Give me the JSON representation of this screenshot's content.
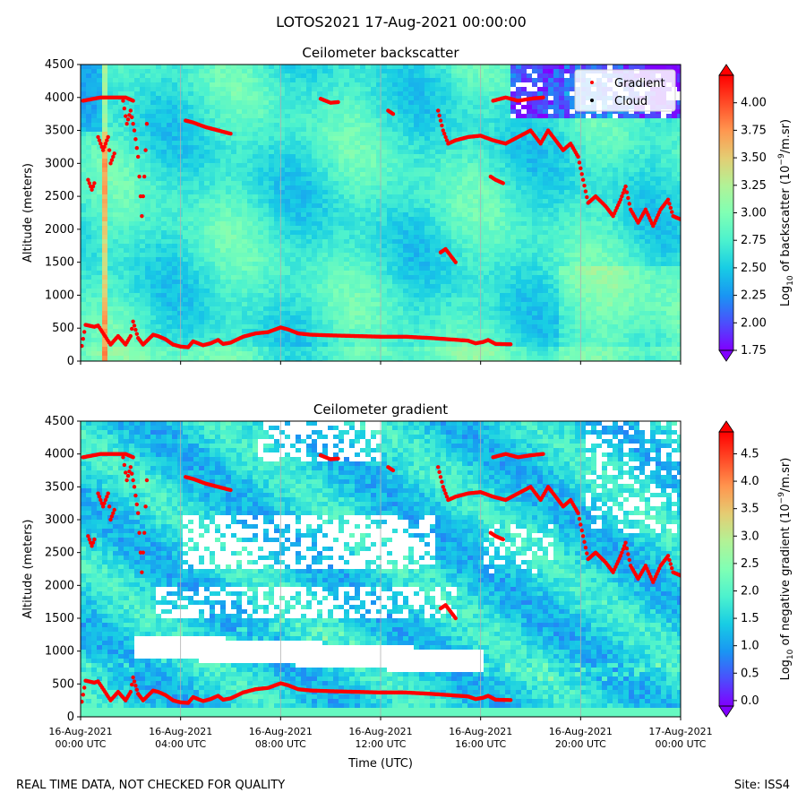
{
  "suptitle": "LOTOS2021 17-Aug-2021 00:00:00",
  "footer_left": "REAL TIME DATA, NOT CHECKED FOR QUALITY",
  "footer_right": "Site: ISS4",
  "colors": {
    "gradient_marker": "#ff0000",
    "cloud_marker": "#000000",
    "gridline": "#b0b0b0",
    "rainbow": [
      "#8000ff",
      "#4b4ffc",
      "#1996f3",
      "#18cde4",
      "#4cf2ce",
      "#80ffb4",
      "#b2f296",
      "#e4cd73",
      "#ff964f",
      "#ff4b27",
      "#ff0000"
    ]
  },
  "chart_data": [
    {
      "id": "backscatter",
      "type": "heatmap",
      "title": "Ceilometer backscatter",
      "xlabel": "",
      "ylabel": "Altitude (meters)",
      "ylim": [
        0,
        4500
      ],
      "yticks": [
        "0",
        "500",
        "1000",
        "1500",
        "2000",
        "2500",
        "3000",
        "3500",
        "4000",
        "4500"
      ],
      "xlim_hours": [
        0,
        24
      ],
      "xticks_hours": [
        0,
        4,
        8,
        12,
        16,
        20,
        24
      ],
      "xtick_labels": [],
      "grid": "vertical",
      "legend": {
        "position": "top-right",
        "entries": [
          "Gradient",
          "Cloud"
        ]
      },
      "colorbar": {
        "label_parts": [
          "Log",
          "10",
          " of backscatter (10",
          "−9",
          "/m.sr)"
        ],
        "range": [
          1.75,
          4.25
        ],
        "ticks": [
          "1.75",
          "2.00",
          "2.25",
          "2.50",
          "2.75",
          "3.00",
          "3.25",
          "3.50",
          "3.75",
          "4.00"
        ],
        "tick_values": [
          1.75,
          2.0,
          2.25,
          2.5,
          2.75,
          3.0,
          3.25,
          3.5,
          3.75,
          4.0
        ]
      }
    },
    {
      "id": "gradient",
      "type": "heatmap",
      "title": "Ceilometer gradient",
      "xlabel": "Time (UTC)",
      "ylabel": "Altitude (meters)",
      "ylim": [
        0,
        4500
      ],
      "yticks": [
        "0",
        "500",
        "1000",
        "1500",
        "2000",
        "2500",
        "3000",
        "3500",
        "4000",
        "4500"
      ],
      "xlim_hours": [
        0,
        24
      ],
      "xticks_hours": [
        0,
        4,
        8,
        12,
        16,
        20,
        24
      ],
      "xtick_labels": [
        [
          "16-Aug-2021",
          "00:00 UTC"
        ],
        [
          "16-Aug-2021",
          "04:00 UTC"
        ],
        [
          "16-Aug-2021",
          "08:00 UTC"
        ],
        [
          "16-Aug-2021",
          "12:00 UTC"
        ],
        [
          "16-Aug-2021",
          "16:00 UTC"
        ],
        [
          "16-Aug-2021",
          "20:00 UTC"
        ],
        [
          "17-Aug-2021",
          "00:00 UTC"
        ]
      ],
      "grid": "vertical",
      "colorbar": {
        "label_parts": [
          "Log",
          "10",
          " of negative gradient (10",
          "−9",
          "/m.sr)"
        ],
        "range": [
          -0.1,
          4.9
        ],
        "ticks": [
          "0.0",
          "0.5",
          "1.0",
          "1.5",
          "2.0",
          "2.5",
          "3.0",
          "3.5",
          "4.0",
          "4.5"
        ],
        "tick_values": [
          0.0,
          0.5,
          1.0,
          1.5,
          2.0,
          2.5,
          3.0,
          3.5,
          4.0,
          4.5
        ]
      }
    }
  ],
  "gradient_layers": [
    {
      "name": "boundary-layer",
      "points": [
        [
          0.05,
          230
        ],
        [
          0.2,
          550
        ],
        [
          0.55,
          520
        ],
        [
          0.7,
          540
        ],
        [
          1.2,
          250
        ],
        [
          1.5,
          380
        ],
        [
          1.8,
          250
        ],
        [
          2.0,
          380
        ],
        [
          2.1,
          600
        ],
        [
          2.3,
          350
        ],
        [
          2.5,
          250
        ],
        [
          2.9,
          400
        ],
        [
          3.1,
          380
        ],
        [
          3.4,
          330
        ],
        [
          3.7,
          250
        ],
        [
          4.0,
          220
        ],
        [
          4.3,
          210
        ],
        [
          4.5,
          300
        ],
        [
          4.9,
          240
        ],
        [
          5.2,
          270
        ],
        [
          5.5,
          320
        ],
        [
          5.7,
          260
        ],
        [
          6.0,
          280
        ],
        [
          6.5,
          370
        ],
        [
          7.0,
          420
        ],
        [
          7.5,
          440
        ],
        [
          8.0,
          510
        ],
        [
          8.3,
          480
        ],
        [
          8.7,
          420
        ],
        [
          9.2,
          400
        ],
        [
          10.0,
          390
        ],
        [
          11.0,
          380
        ],
        [
          12.0,
          370
        ],
        [
          13.0,
          370
        ],
        [
          14.0,
          350
        ],
        [
          15.5,
          310
        ],
        [
          15.8,
          270
        ],
        [
          16.1,
          290
        ],
        [
          16.3,
          320
        ],
        [
          16.6,
          260
        ],
        [
          17.2,
          255
        ]
      ]
    },
    {
      "name": "residual-layer-1",
      "points": [
        [
          0.3,
          2750
        ],
        [
          0.45,
          2600
        ],
        [
          0.55,
          2700
        ]
      ]
    },
    {
      "name": "residual-layer-2",
      "points": [
        [
          0.7,
          3400
        ],
        [
          0.9,
          3200
        ],
        [
          1.1,
          3400
        ],
        [
          1.2,
          3000
        ],
        [
          1.35,
          3150
        ]
      ]
    },
    {
      "name": "residual-layer-3",
      "points": [
        [
          1.7,
          3950
        ],
        [
          1.85,
          3600
        ],
        [
          2.0,
          3800
        ],
        [
          2.15,
          3500
        ],
        [
          2.3,
          3100
        ],
        [
          2.45,
          2200
        ],
        [
          2.55,
          2800
        ],
        [
          2.65,
          3600
        ]
      ]
    },
    {
      "name": "aloft-4km-a",
      "points": [
        [
          0.1,
          3950
        ],
        [
          0.8,
          4000
        ],
        [
          1.8,
          4000
        ],
        [
          2.1,
          3950
        ]
      ]
    },
    {
      "name": "aloft-3600",
      "points": [
        [
          4.2,
          3650
        ],
        [
          4.5,
          3620
        ],
        [
          5.0,
          3550
        ],
        [
          5.5,
          3500
        ],
        [
          6.0,
          3450
        ]
      ]
    },
    {
      "name": "aloft-4km-b",
      "points": [
        [
          9.6,
          3980
        ],
        [
          10.0,
          3920
        ],
        [
          10.3,
          3930
        ]
      ]
    },
    {
      "name": "aloft-3800",
      "points": [
        [
          12.3,
          3800
        ],
        [
          12.5,
          3750
        ]
      ]
    },
    {
      "name": "mid-1600",
      "points": [
        [
          14.4,
          1650
        ],
        [
          14.6,
          1700
        ],
        [
          14.8,
          1600
        ],
        [
          15.0,
          1500
        ]
      ]
    },
    {
      "name": "evening-descent",
      "points": [
        [
          14.3,
          3800
        ],
        [
          14.5,
          3500
        ],
        [
          14.7,
          3300
        ],
        [
          15.0,
          3350
        ],
        [
          15.5,
          3400
        ],
        [
          16.0,
          3420
        ],
        [
          16.5,
          3350
        ],
        [
          17.0,
          3300
        ],
        [
          17.5,
          3400
        ],
        [
          18.0,
          3500
        ],
        [
          18.4,
          3300
        ],
        [
          18.7,
          3500
        ],
        [
          19.0,
          3350
        ],
        [
          19.3,
          3200
        ],
        [
          19.6,
          3300
        ],
        [
          19.9,
          3100
        ],
        [
          20.1,
          2750
        ],
        [
          20.3,
          2400
        ],
        [
          20.6,
          2500
        ],
        [
          21.0,
          2350
        ],
        [
          21.3,
          2200
        ],
        [
          21.6,
          2450
        ],
        [
          21.8,
          2650
        ],
        [
          22.0,
          2300
        ],
        [
          22.3,
          2100
        ],
        [
          22.6,
          2300
        ],
        [
          22.9,
          2050
        ],
        [
          23.2,
          2300
        ],
        [
          23.5,
          2450
        ],
        [
          23.7,
          2200
        ],
        [
          24.0,
          2150
        ]
      ]
    },
    {
      "name": "late-4km",
      "points": [
        [
          16.5,
          3950
        ],
        [
          17.0,
          4000
        ],
        [
          17.5,
          3950
        ],
        [
          18.0,
          3980
        ],
        [
          18.5,
          4000
        ]
      ]
    },
    {
      "name": "late-2700",
      "points": [
        [
          16.4,
          2800
        ],
        [
          16.6,
          2750
        ],
        [
          16.9,
          2700
        ]
      ]
    }
  ]
}
